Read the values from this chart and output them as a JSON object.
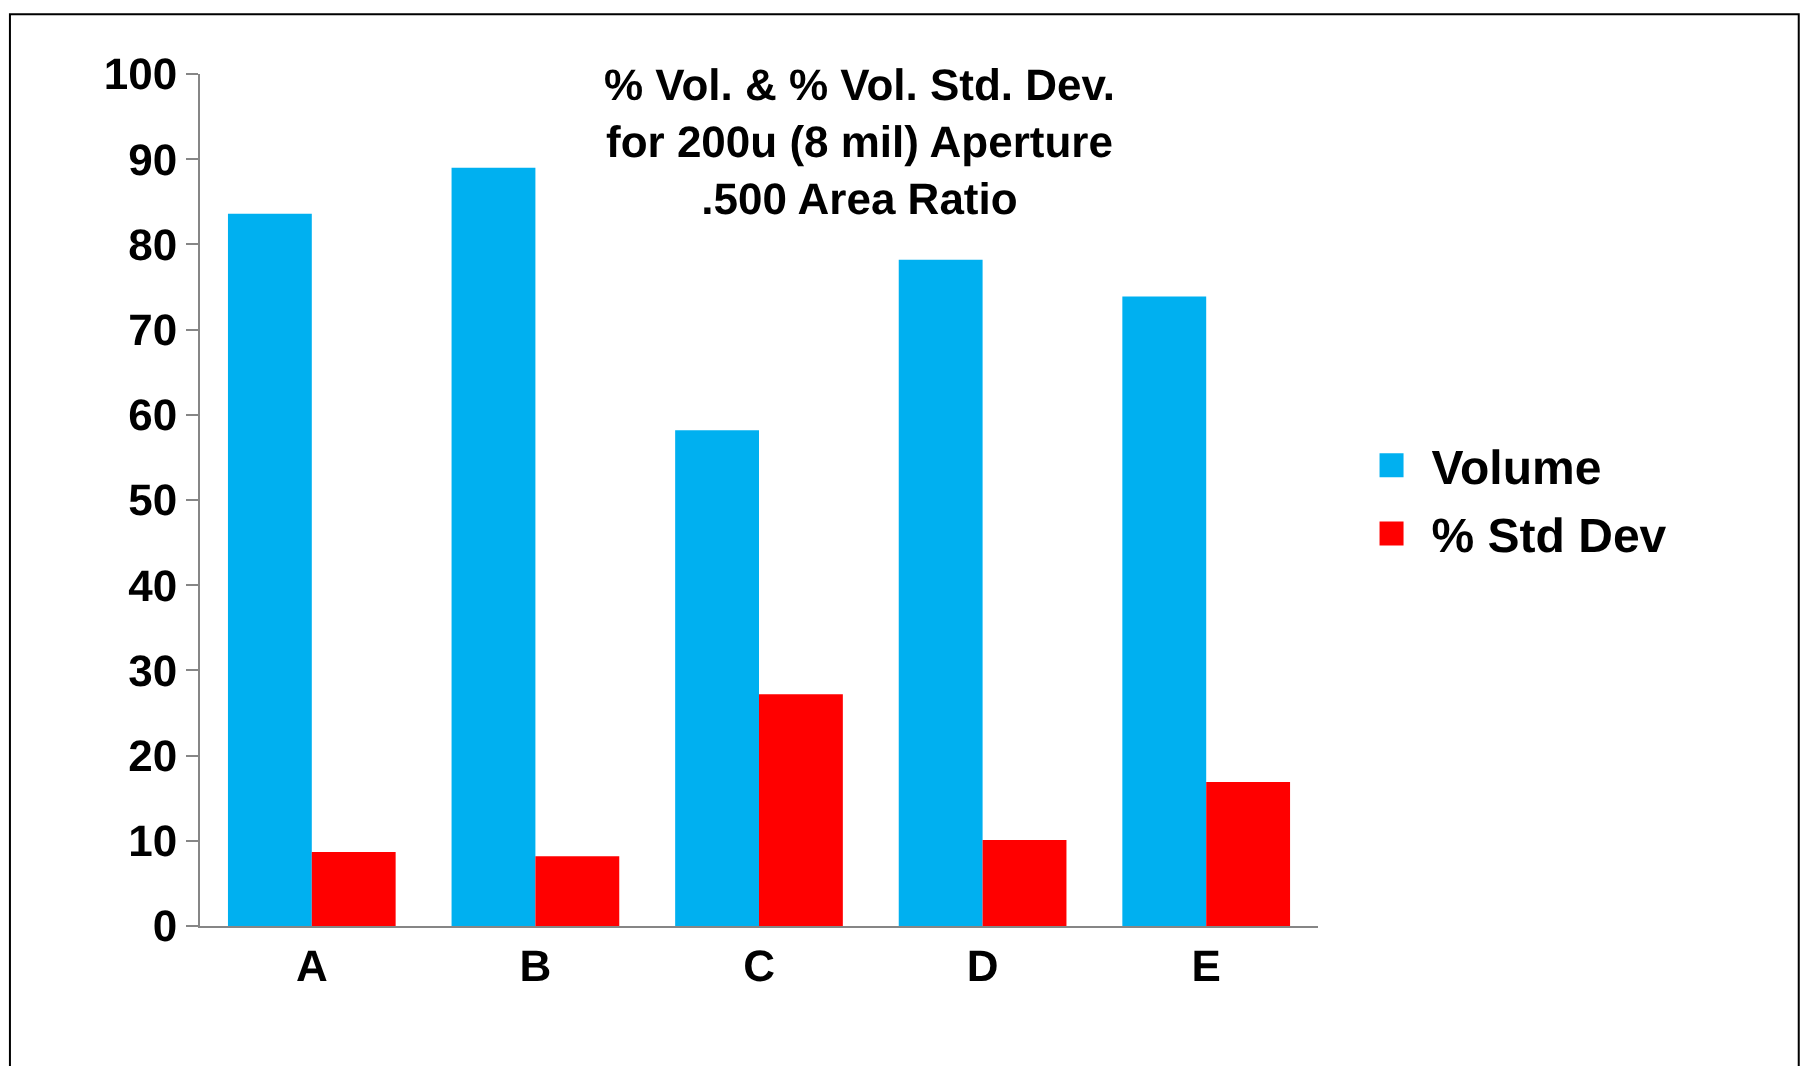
{
  "chart_data": {
    "type": "bar",
    "title": "% Vol. & % Vol. Std. Dev.\nfor 200u (8 mil) Aperture\n.500 Area Ratio",
    "categories": [
      "A",
      "B",
      "C",
      "D",
      "E"
    ],
    "series": [
      {
        "name": "Volume",
        "color": "#00b0f0",
        "values": [
          83.6,
          89.0,
          58.2,
          78.2,
          73.9
        ]
      },
      {
        "name": "% Std Dev",
        "color": "#ff0000",
        "values": [
          8.7,
          8.2,
          27.2,
          10.1,
          16.9
        ]
      }
    ],
    "ylim": [
      0,
      100
    ],
    "yticks": [
      0,
      10,
      20,
      30,
      40,
      50,
      60,
      70,
      80,
      90,
      100
    ],
    "legend": "right"
  }
}
